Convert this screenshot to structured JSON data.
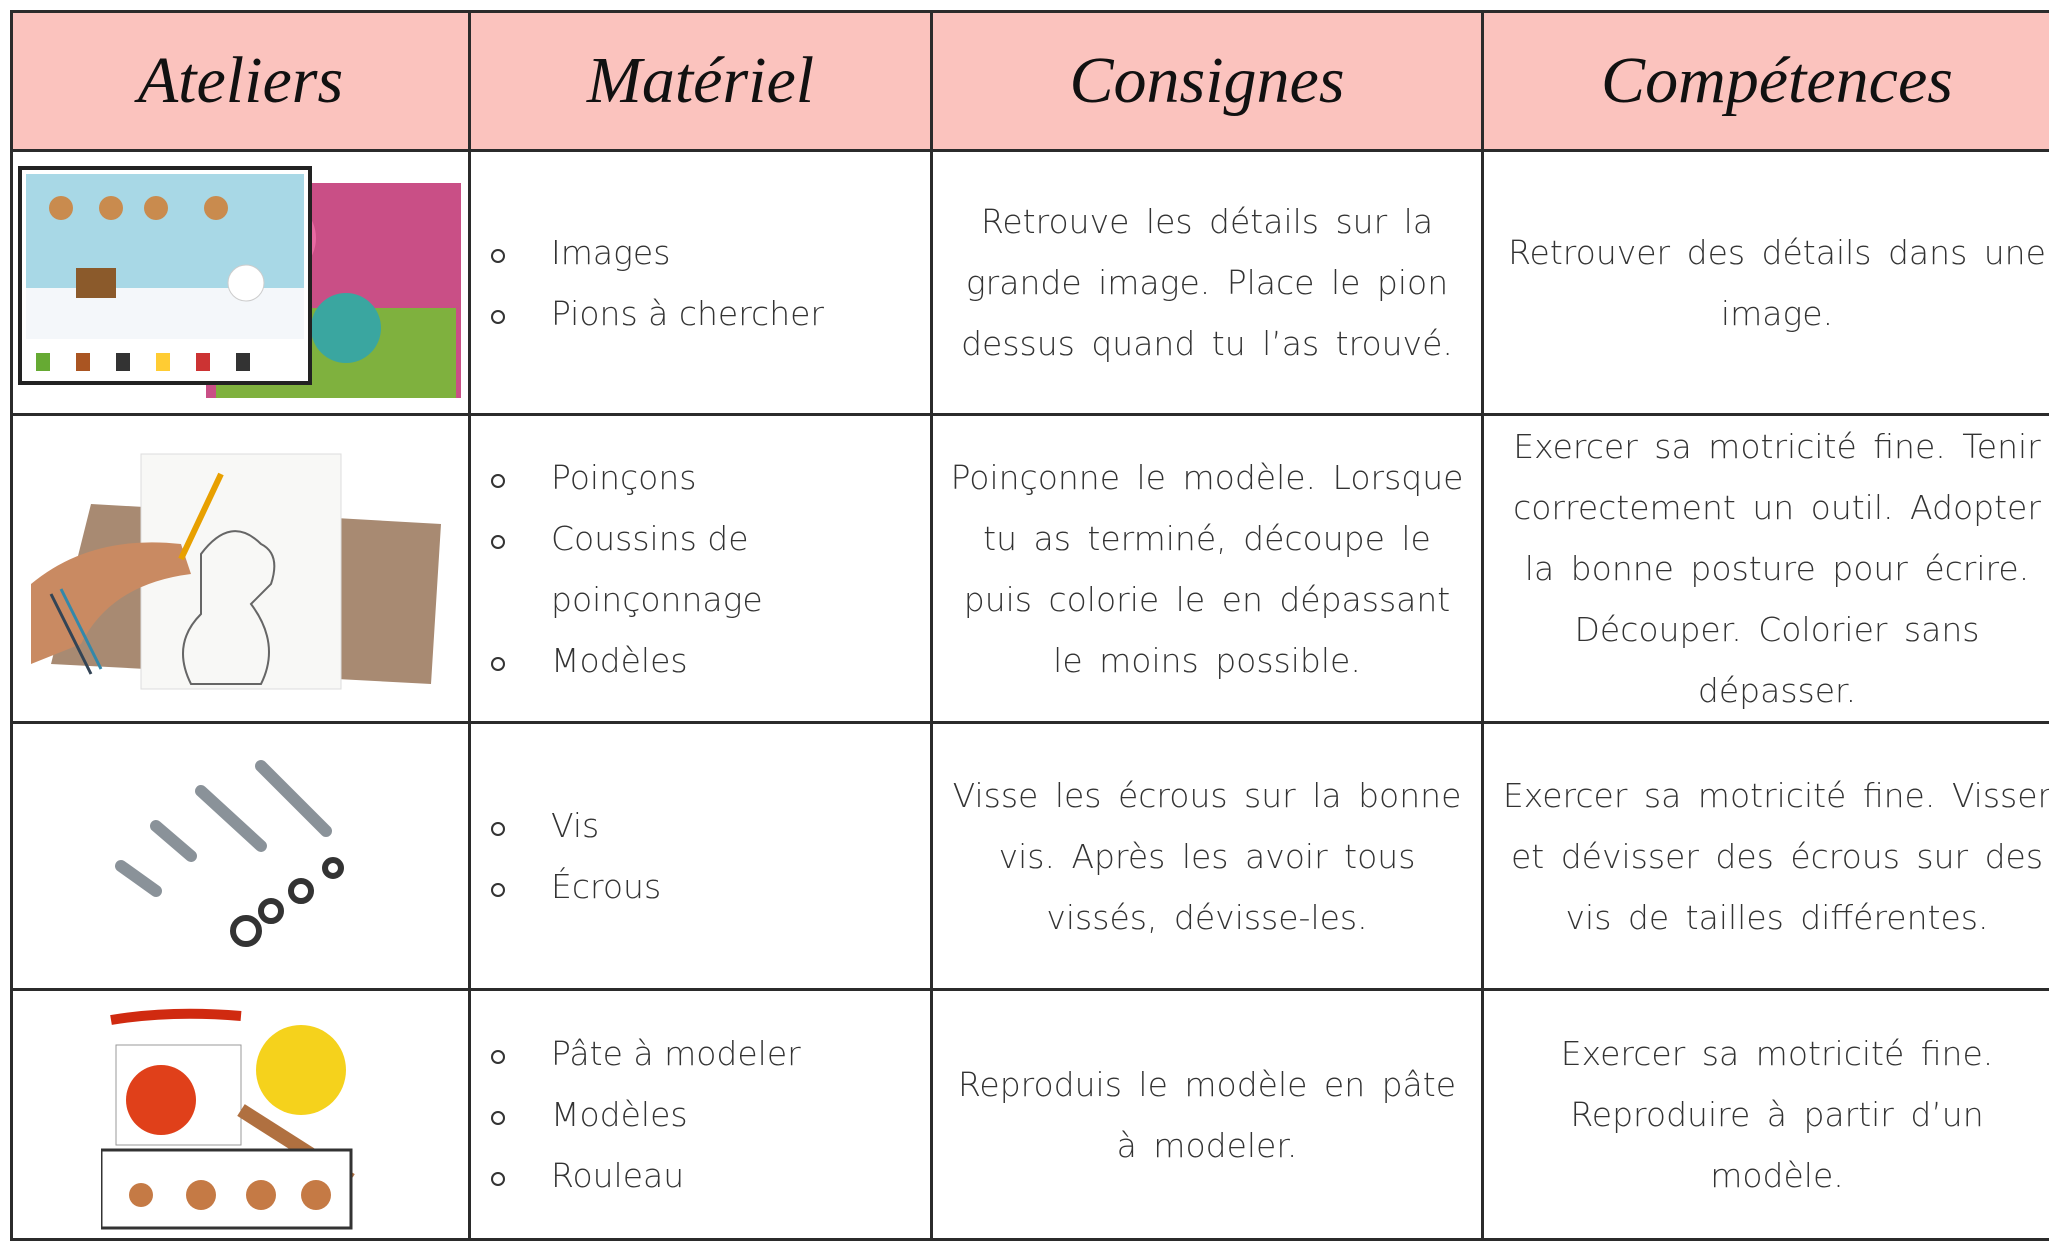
{
  "header": {
    "columns": [
      "Ateliers",
      "Matériel",
      "Consignes",
      "Compétences"
    ]
  },
  "table": {
    "rows": [
      {
        "materials": [
          "Images",
          "Pions à chercher"
        ],
        "instruction": "Retrouve les détails sur la grande image. Place le pion dessus quand tu l’as trouvé.",
        "skills": "Retrouver des détails dans une image."
      },
      {
        "materials": [
          "Poinçons",
          "Coussins de poinçonnage",
          "Modèles"
        ],
        "instruction": "Poinçonne le modèle. Lorsque tu as terminé, découpe le puis colorie le en dépassant le moins possible.",
        "skills": "Exercer sa motricité fine. Tenir correctement un outil. Adopter la bonne posture pour écrire. Découper. Colorier sans dépasser."
      },
      {
        "materials": [
          "Vis",
          "Écrous"
        ],
        "instruction": "Visse les écrous sur la bonne vis. Après les avoir tous vissés, dévisse-les.",
        "skills": "Exercer sa motricité fine. Visser et dévisser des écrous sur des vis de tailles différentes."
      },
      {
        "materials": [
          "Pâte à modeler",
          "Modèles",
          "Rouleau"
        ],
        "instruction": "Reproduis le modèle en pâte à modeler.",
        "skills": "Exercer sa motricité fine. Reproduire à partir d’un modèle."
      }
    ]
  }
}
